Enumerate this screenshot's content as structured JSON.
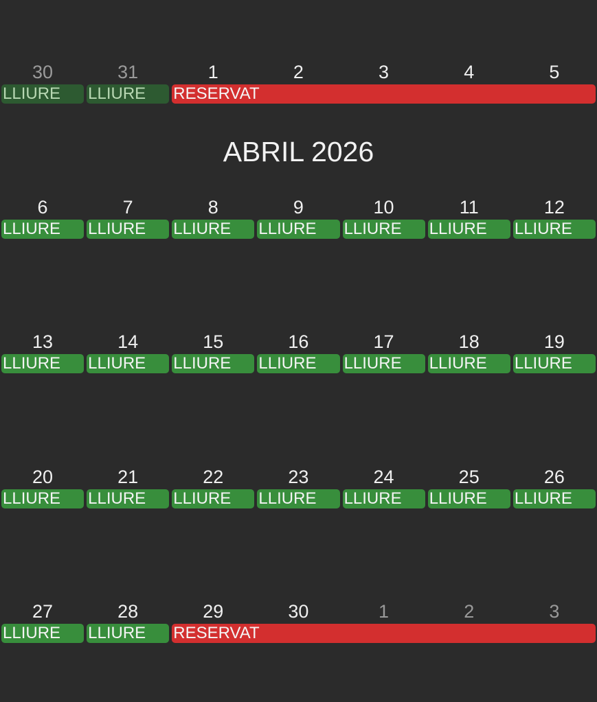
{
  "month_title": "ABRIL 2026",
  "colors": {
    "free": "#388e3c",
    "free_muted": "#2d5a31",
    "booked": "#d32f2f",
    "background": "#2b2b2b"
  },
  "weeks": [
    {
      "days": [
        {
          "n": "30",
          "muted": true
        },
        {
          "n": "31",
          "muted": true
        },
        {
          "n": "1"
        },
        {
          "n": "2"
        },
        {
          "n": "3"
        },
        {
          "n": "4"
        },
        {
          "n": "5"
        }
      ],
      "bars": [
        {
          "label": "LLIURE",
          "status": "free",
          "from": "30",
          "to": "30",
          "muted": true
        },
        {
          "label": "LLIURE",
          "status": "free",
          "from": "31",
          "to": "31",
          "muted": true
        },
        {
          "label": "RESERVAT",
          "status": "booked",
          "from": "1",
          "to": "5"
        }
      ]
    },
    {
      "days": [
        {
          "n": "6"
        },
        {
          "n": "7"
        },
        {
          "n": "8"
        },
        {
          "n": "9"
        },
        {
          "n": "10"
        },
        {
          "n": "11"
        },
        {
          "n": "12"
        }
      ],
      "bars": [
        {
          "label": "LLIURE",
          "status": "free",
          "from": "6",
          "to": "6"
        },
        {
          "label": "LLIURE",
          "status": "free",
          "from": "7",
          "to": "7"
        },
        {
          "label": "LLIURE",
          "status": "free",
          "from": "8",
          "to": "8"
        },
        {
          "label": "LLIURE",
          "status": "free",
          "from": "9",
          "to": "9"
        },
        {
          "label": "LLIURE",
          "status": "free",
          "from": "10",
          "to": "10"
        },
        {
          "label": "LLIURE",
          "status": "free",
          "from": "11",
          "to": "11"
        },
        {
          "label": "LLIURE",
          "status": "free",
          "from": "12",
          "to": "12"
        }
      ]
    },
    {
      "days": [
        {
          "n": "13"
        },
        {
          "n": "14"
        },
        {
          "n": "15"
        },
        {
          "n": "16"
        },
        {
          "n": "17"
        },
        {
          "n": "18"
        },
        {
          "n": "19"
        }
      ],
      "bars": [
        {
          "label": "LLIURE",
          "status": "free",
          "from": "13",
          "to": "13"
        },
        {
          "label": "LLIURE",
          "status": "free",
          "from": "14",
          "to": "14"
        },
        {
          "label": "LLIURE",
          "status": "free",
          "from": "15",
          "to": "15"
        },
        {
          "label": "LLIURE",
          "status": "free",
          "from": "16",
          "to": "16"
        },
        {
          "label": "LLIURE",
          "status": "free",
          "from": "17",
          "to": "17"
        },
        {
          "label": "LLIURE",
          "status": "free",
          "from": "18",
          "to": "18"
        },
        {
          "label": "LLIURE",
          "status": "free",
          "from": "19",
          "to": "19"
        }
      ]
    },
    {
      "days": [
        {
          "n": "20"
        },
        {
          "n": "21"
        },
        {
          "n": "22"
        },
        {
          "n": "23"
        },
        {
          "n": "24"
        },
        {
          "n": "25"
        },
        {
          "n": "26"
        }
      ],
      "bars": [
        {
          "label": "LLIURE",
          "status": "free",
          "from": "20",
          "to": "20"
        },
        {
          "label": "LLIURE",
          "status": "free",
          "from": "21",
          "to": "21"
        },
        {
          "label": "LLIURE",
          "status": "free",
          "from": "22",
          "to": "22"
        },
        {
          "label": "LLIURE",
          "status": "free",
          "from": "23",
          "to": "23"
        },
        {
          "label": "LLIURE",
          "status": "free",
          "from": "24",
          "to": "24"
        },
        {
          "label": "LLIURE",
          "status": "free",
          "from": "25",
          "to": "25"
        },
        {
          "label": "LLIURE",
          "status": "free",
          "from": "26",
          "to": "26"
        }
      ]
    },
    {
      "days": [
        {
          "n": "27"
        },
        {
          "n": "28"
        },
        {
          "n": "29"
        },
        {
          "n": "30"
        },
        {
          "n": "1",
          "muted": true
        },
        {
          "n": "2",
          "muted": true
        },
        {
          "n": "3",
          "muted": true
        }
      ],
      "bars": [
        {
          "label": "LLIURE",
          "status": "free",
          "from": "27",
          "to": "27"
        },
        {
          "label": "LLIURE",
          "status": "free",
          "from": "28",
          "to": "28"
        },
        {
          "label": "RESERVAT",
          "status": "booked",
          "from": "29",
          "to": "3"
        }
      ]
    }
  ]
}
